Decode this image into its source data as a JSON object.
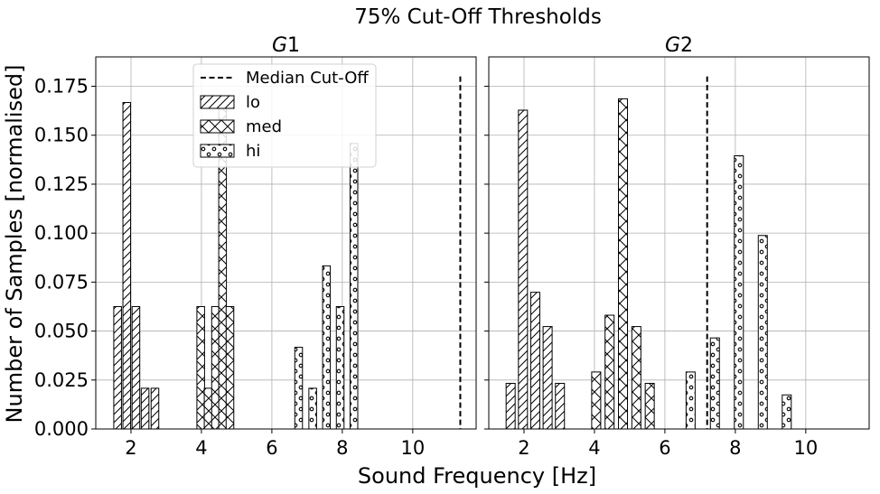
{
  "chart_data": {
    "type": "bar",
    "title": "75% Cut-Off Thresholds",
    "xlabel": "Sound Frequency [Hz]",
    "ylabel": "Number of Samples [normalised]",
    "xlim": [
      1.0,
      11.8
    ],
    "ylim": [
      0.0,
      0.19
    ],
    "x_ticks": [
      "2",
      "4",
      "6",
      "8",
      "10"
    ],
    "y_ticks": [
      "0.000",
      "0.025",
      "0.050",
      "0.075",
      "0.100",
      "0.125",
      "0.150",
      "0.175"
    ],
    "grid": true,
    "legend": {
      "placement": "upper center (left panel)",
      "entries": [
        {
          "label": "Median Cut-Off",
          "style": "dashed line"
        },
        {
          "label": "lo",
          "hatch": "diagonal"
        },
        {
          "label": "med",
          "hatch": "cross"
        },
        {
          "label": "hi",
          "hatch": "circles"
        }
      ]
    },
    "panels": [
      {
        "title": "G1",
        "median_cutoff": 11.35,
        "series": [
          {
            "name": "lo",
            "bars": [
              {
                "x": 1.62,
                "y": 0.0625
              },
              {
                "x": 1.88,
                "y": 0.1667
              },
              {
                "x": 2.14,
                "y": 0.0625
              },
              {
                "x": 2.4,
                "y": 0.0208
              },
              {
                "x": 2.68,
                "y": 0.0208
              }
            ]
          },
          {
            "name": "med",
            "bars": [
              {
                "x": 3.98,
                "y": 0.0625
              },
              {
                "x": 4.19,
                "y": 0.0208
              },
              {
                "x": 4.4,
                "y": 0.0625
              },
              {
                "x": 4.6,
                "y": 0.1667
              },
              {
                "x": 4.81,
                "y": 0.0625
              }
            ]
          },
          {
            "name": "hi",
            "bars": [
              {
                "x": 6.76,
                "y": 0.0417
              },
              {
                "x": 7.16,
                "y": 0.0208
              },
              {
                "x": 7.55,
                "y": 0.0833
              },
              {
                "x": 7.94,
                "y": 0.0625
              },
              {
                "x": 8.33,
                "y": 0.1458
              }
            ]
          }
        ]
      },
      {
        "title": "G2",
        "median_cutoff": 7.2,
        "series": [
          {
            "name": "lo",
            "bars": [
              {
                "x": 1.62,
                "y": 0.0233
              },
              {
                "x": 1.97,
                "y": 0.1628
              },
              {
                "x": 2.32,
                "y": 0.0698
              },
              {
                "x": 2.67,
                "y": 0.0523
              },
              {
                "x": 3.02,
                "y": 0.0233
              }
            ]
          },
          {
            "name": "med",
            "bars": [
              {
                "x": 4.05,
                "y": 0.0291
              },
              {
                "x": 4.43,
                "y": 0.0581
              },
              {
                "x": 4.81,
                "y": 0.1686
              },
              {
                "x": 5.19,
                "y": 0.0523
              },
              {
                "x": 5.57,
                "y": 0.0233
              }
            ]
          },
          {
            "name": "hi",
            "bars": [
              {
                "x": 6.73,
                "y": 0.0291
              },
              {
                "x": 7.42,
                "y": 0.0465
              },
              {
                "x": 8.1,
                "y": 0.1395
              },
              {
                "x": 8.78,
                "y": 0.0988
              },
              {
                "x": 9.46,
                "y": 0.0174
              }
            ]
          }
        ]
      }
    ]
  }
}
